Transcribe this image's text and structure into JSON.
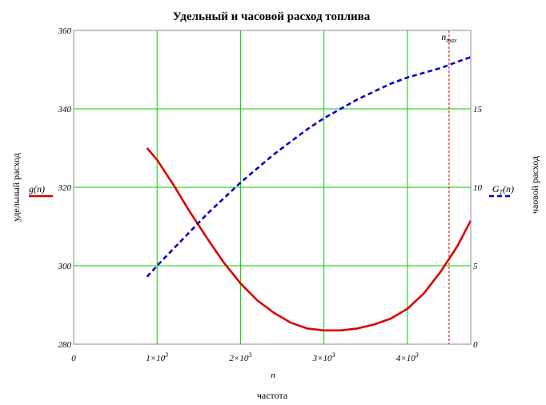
{
  "chart_data": {
    "type": "line",
    "title": "Удельный и часовой расход топлива",
    "xlabel_var": "n",
    "xlabel": "частота",
    "ylabel_left": "удельный расход",
    "ylabel_right": "чаовой расход",
    "xlim": [
      0,
      4760
    ],
    "ylim_left": [
      280,
      360
    ],
    "ylim_right": [
      0,
      20
    ],
    "x_ticks": [
      {
        "value": 0,
        "label": "0",
        "sup": ""
      },
      {
        "value": 1000,
        "label": "1×10",
        "sup": "3"
      },
      {
        "value": 2000,
        "label": "2×10",
        "sup": "3"
      },
      {
        "value": 3000,
        "label": "3×10",
        "sup": "3"
      },
      {
        "value": 4000,
        "label": "4×10",
        "sup": "3"
      }
    ],
    "y_ticks_left": [
      "280",
      "300",
      "320",
      "340",
      "360"
    ],
    "y_ticks_right": [
      "0",
      "5",
      "10",
      "15"
    ],
    "y_ticks_right_values": [
      0,
      5,
      10,
      15
    ],
    "grid": true,
    "marker": {
      "value": 4500,
      "label": "n",
      "sub": "max",
      "color": "#cc0000"
    },
    "series": [
      {
        "name": "g(n)",
        "legend_main": "g",
        "legend_sub": "",
        "legend_arg": "(n)",
        "axis": "left",
        "color": "#dd0000",
        "style": "solid",
        "x": [
          880,
          1000,
          1200,
          1400,
          1600,
          1800,
          2000,
          2200,
          2400,
          2600,
          2800,
          3000,
          3200,
          3400,
          3600,
          3800,
          4000,
          4200,
          4400,
          4600,
          4760
        ],
        "values": [
          330,
          327,
          320.5,
          313.5,
          307,
          300.8,
          295.5,
          291.2,
          288,
          285.5,
          284,
          283.5,
          283.5,
          284,
          285,
          286.5,
          289,
          293,
          298.5,
          305,
          311.5
        ]
      },
      {
        "name": "GT(n)",
        "legend_main": "G",
        "legend_sub": "T",
        "legend_arg": "(n)",
        "axis": "right",
        "color": "#0000cc",
        "style": "dashed",
        "x": [
          880,
          1000,
          1200,
          1400,
          1600,
          1800,
          2000,
          2200,
          2400,
          2600,
          2800,
          3000,
          3200,
          3400,
          3600,
          3800,
          4000,
          4200,
          4400,
          4600,
          4760
        ],
        "values": [
          4.3,
          5.0,
          6.1,
          7.2,
          8.3,
          9.3,
          10.3,
          11.2,
          12.1,
          12.9,
          13.7,
          14.4,
          15.0,
          15.6,
          16.1,
          16.6,
          17.0,
          17.3,
          17.6,
          18.0,
          18.3
        ]
      }
    ]
  }
}
